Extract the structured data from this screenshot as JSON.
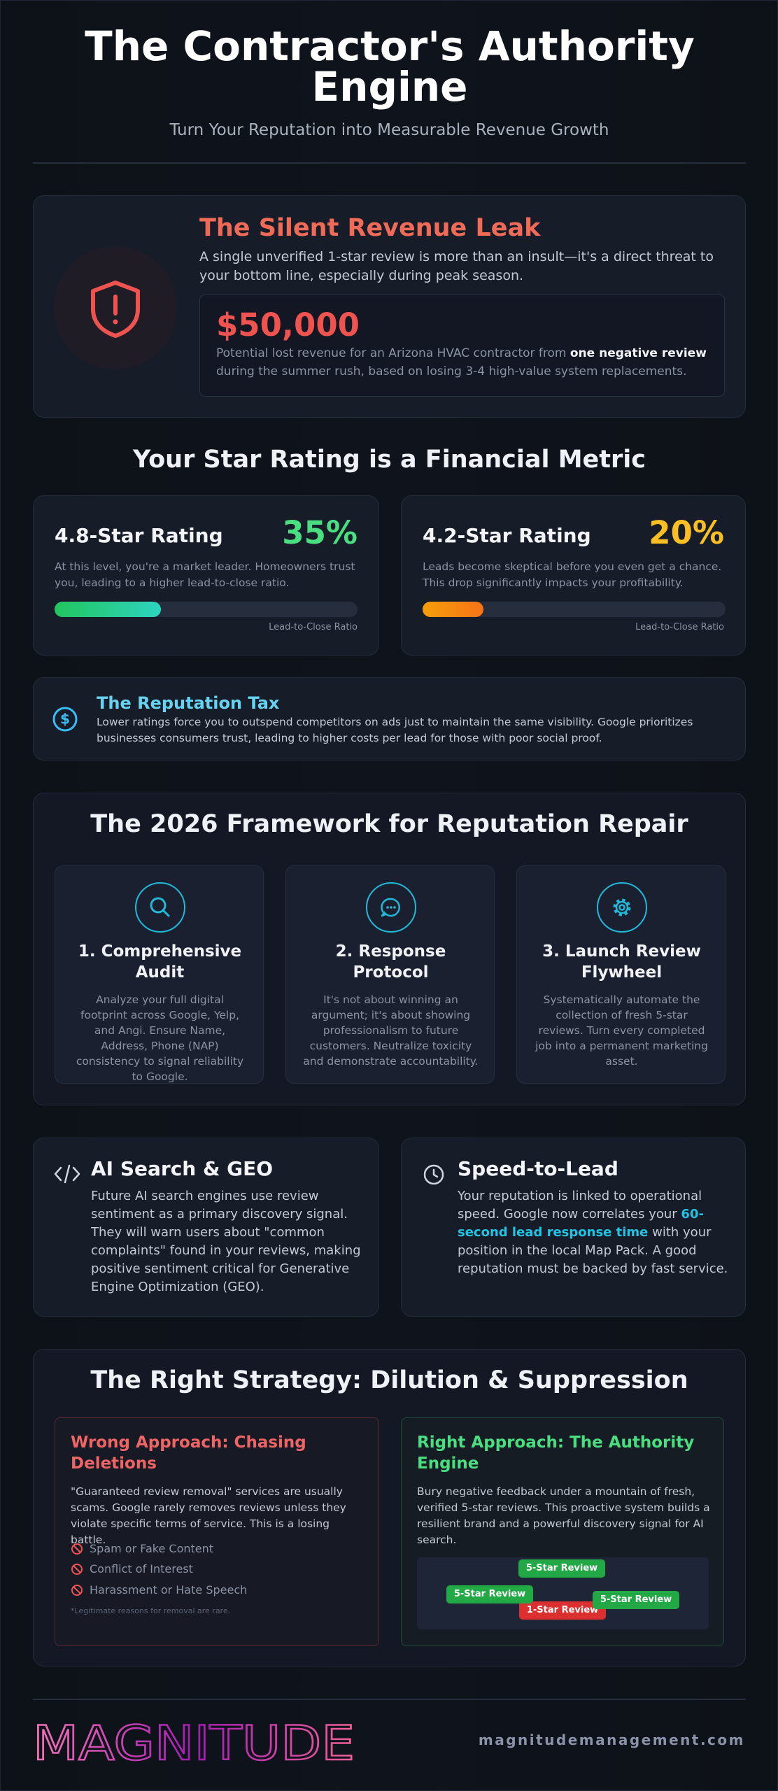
{
  "header": {
    "title": "The Contractor's Authority Engine",
    "subtitle": "Turn Your Reputation into Measurable Revenue Growth"
  },
  "leak": {
    "title": "The Silent Revenue Leak",
    "description": "A single unverified 1-star review is more than an insult—it's a direct threat to your bottom line, especially during peak season.",
    "amount": "$50,000",
    "note_before": "Potential lost revenue for an Arizona HVAC contractor from ",
    "note_bold": "one negative review",
    "note_after": " during the summer rush, based on losing 3-4 high-value system replacements."
  },
  "ratings": {
    "title": "Your Star Rating is a Financial Metric",
    "cards": [
      {
        "title": "4.8-Star Rating",
        "percent": {
          "value": 35,
          "label": "35%"
        },
        "description": "At this level, you're a market leader. Homeowners trust you, leading to a higher lead-to-close ratio.",
        "bar_label": "Lead-to-Close Ratio"
      },
      {
        "title": "4.2-Star Rating",
        "percent": {
          "value": 20,
          "label": "20%"
        },
        "description": "Leads become skeptical before you even get a chance. This drop significantly impacts your profitability.",
        "bar_label": "Lead-to-Close Ratio"
      }
    ]
  },
  "tax": {
    "title": "The Reputation Tax",
    "text": "Lower ratings force you to outspend competitors on ads just to maintain the same visibility. Google prioritizes businesses consumers trust, leading to higher costs per lead for those with poor social proof."
  },
  "framework": {
    "title": "The 2026 Framework for Reputation Repair",
    "steps": [
      {
        "title": "1. Comprehensive Audit",
        "text": "Analyze your full digital footprint across Google, Yelp, and Angi. Ensure Name, Address, Phone (NAP) consistency to signal reliability to Google."
      },
      {
        "title": "2. Response Protocol",
        "text": "It's not about winning an argument; it's about showing professionalism to future customers. Neutralize toxicity and demonstrate accountability."
      },
      {
        "title": "3. Launch Review Flywheel",
        "text": "Systematically automate the collection of fresh 5-star reviews. Turn every completed job into a permanent marketing asset."
      }
    ]
  },
  "ai": {
    "title": "AI Search & GEO",
    "text": "Future AI search engines use review sentiment as a primary discovery signal. They will warn users about \"common complaints\" found in your reviews, making positive sentiment critical for Generative Engine Optimization (GEO)."
  },
  "speed": {
    "title": "Speed-to-Lead",
    "text_before": "Your reputation is linked to operational speed. Google now correlates your ",
    "text_highlight": "60-second lead response time",
    "text_after": " with your position in the local Map Pack. A good reputation must be backed by fast service."
  },
  "strategy": {
    "title": "The Right Strategy: Dilution & Suppression",
    "wrong": {
      "title": "Wrong Approach: Chasing Deletions",
      "text": "\"Guaranteed review removal\" services are usually scams. Google rarely removes reviews unless they violate specific terms of service. This is a losing battle.",
      "items": [
        "Spam or Fake Content",
        "Conflict of Interest",
        "Harassment or Hate Speech"
      ],
      "note": "*Legitimate reasons for removal are rare."
    },
    "right": {
      "title": "Right Approach: The Authority Engine",
      "text": "Bury negative feedback under a mountain of fresh, verified 5-star reviews. This proactive system builds a resilient brand and a powerful discovery signal for AI search.",
      "badges": [
        "5-Star Review",
        "5-Star Review",
        "5-Star Review",
        "1-Star Review"
      ]
    }
  },
  "footer": {
    "logo": "MAGNITUDE",
    "url": "magnitudemanagement.com"
  }
}
